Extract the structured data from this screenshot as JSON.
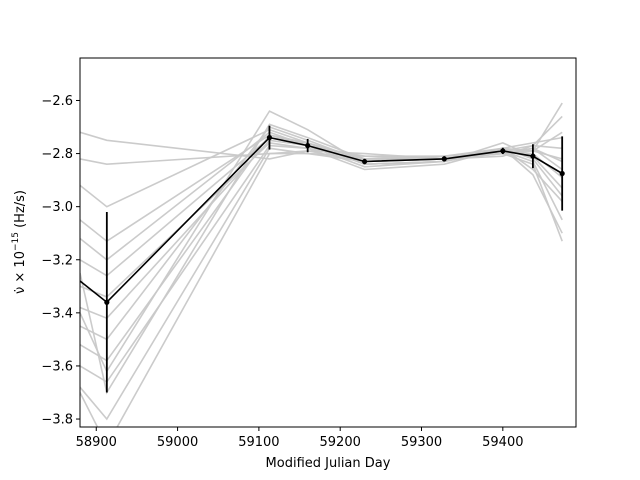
{
  "chart_data": {
    "type": "line",
    "title": "",
    "xlabel": "Modified Julian Day",
    "ylabel_parts": {
      "sym": "ν̇",
      "times": " × 10",
      "exp": "−15",
      "unit": " (Hz/s)"
    },
    "xlim": [
      58880,
      59490
    ],
    "ylim": [
      -3.83,
      -2.44
    ],
    "xticks": [
      58900,
      59000,
      59100,
      59200,
      59300,
      59400
    ],
    "xtick_labels": [
      "58900",
      "59000",
      "59100",
      "59200",
      "59300",
      "59400"
    ],
    "yticks": [
      -2.6,
      -2.8,
      -3.0,
      -3.2,
      -3.4,
      -3.6,
      -3.8
    ],
    "ytick_labels": [
      "−2.6",
      "−2.8",
      "−3.0",
      "−3.2",
      "−3.4",
      "−3.6",
      "−3.8"
    ],
    "grid": false,
    "colors": {
      "mean": "#000000",
      "samples": "#c8c8c8"
    },
    "mean_series": {
      "x": [
        58880,
        58913,
        59113,
        59160,
        59230,
        59328,
        59400,
        59437,
        59473
      ],
      "y": [
        -3.28,
        -3.36,
        -2.74,
        -2.77,
        -2.83,
        -2.82,
        -2.79,
        -2.81,
        -2.875
      ],
      "yerr": [
        null,
        0.34,
        0.045,
        0.025,
        0.01,
        0.01,
        0.012,
        0.045,
        0.14
      ]
    },
    "samples": [
      {
        "x": [
          58880,
          58913,
          59113,
          59160,
          59230,
          59328,
          59400,
          59437,
          59473
        ],
        "y": [
          -2.72,
          -2.75,
          -2.82,
          -2.79,
          -2.8,
          -2.82,
          -2.79,
          -2.77,
          -2.78
        ]
      },
      {
        "x": [
          58880,
          58913,
          59113,
          59160,
          59230,
          59328,
          59400,
          59437,
          59473
        ],
        "y": [
          -2.82,
          -2.84,
          -2.8,
          -2.8,
          -2.81,
          -2.81,
          -2.78,
          -2.79,
          -2.82
        ]
      },
      {
        "x": [
          58880,
          58913,
          59113,
          59160,
          59230,
          59328,
          59400,
          59437,
          59473
        ],
        "y": [
          -2.92,
          -3.0,
          -2.71,
          -2.76,
          -2.84,
          -2.83,
          -2.78,
          -2.86,
          -2.98
        ]
      },
      {
        "x": [
          58880,
          58913,
          59113,
          59160,
          59230,
          59328,
          59400,
          59437,
          59473
        ],
        "y": [
          -3.05,
          -3.13,
          -2.73,
          -2.76,
          -2.82,
          -2.81,
          -2.8,
          -2.78,
          -2.83
        ]
      },
      {
        "x": [
          58880,
          58913,
          59113,
          59160,
          59230,
          59328,
          59400,
          59437,
          59473
        ],
        "y": [
          -3.12,
          -3.2,
          -2.72,
          -2.77,
          -2.83,
          -2.82,
          -2.78,
          -2.76,
          -2.74
        ]
      },
      {
        "x": [
          58880,
          58913,
          59113,
          59160,
          59230,
          59328,
          59400,
          59437,
          59473
        ],
        "y": [
          -3.2,
          -3.26,
          -2.74,
          -2.76,
          -2.84,
          -2.83,
          -2.79,
          -2.8,
          -2.89
        ]
      },
      {
        "x": [
          58880,
          58913,
          59113,
          59160,
          59230,
          59328,
          59400,
          59437,
          59473
        ],
        "y": [
          -3.3,
          -3.34,
          -2.76,
          -2.78,
          -2.82,
          -2.82,
          -2.8,
          -2.78,
          -2.86
        ]
      },
      {
        "x": [
          58880,
          58913,
          59113,
          59160,
          59230,
          59328,
          59400,
          59437,
          59473
        ],
        "y": [
          -3.38,
          -3.42,
          -2.75,
          -2.77,
          -2.85,
          -2.83,
          -2.76,
          -2.81,
          -2.93
        ]
      },
      {
        "x": [
          58880,
          58913,
          59113,
          59160,
          59230,
          59328,
          59400,
          59437,
          59473
        ],
        "y": [
          -3.45,
          -3.5,
          -2.7,
          -2.75,
          -2.83,
          -2.81,
          -2.79,
          -2.83,
          -3.05
        ]
      },
      {
        "x": [
          58880,
          58913,
          59113,
          59160,
          59230,
          59328,
          59400,
          59437,
          59473
        ],
        "y": [
          -3.52,
          -3.58,
          -2.73,
          -2.77,
          -2.81,
          -2.82,
          -2.8,
          -2.79,
          -2.72
        ]
      },
      {
        "x": [
          58880,
          58913,
          59113,
          59160,
          59230,
          59328,
          59400,
          59437,
          59473
        ],
        "y": [
          -3.6,
          -3.66,
          -2.77,
          -2.78,
          -2.86,
          -2.84,
          -2.78,
          -2.88,
          -3.1
        ]
      },
      {
        "x": [
          58880,
          58913,
          59113,
          59160,
          59230,
          59328,
          59400,
          59437,
          59473
        ],
        "y": [
          -3.68,
          -3.8,
          -2.78,
          -2.8,
          -2.83,
          -2.82,
          -2.81,
          -2.77,
          -2.66
        ]
      },
      {
        "x": [
          58880,
          58913,
          59113,
          59160,
          59230,
          59328,
          59400,
          59437,
          59473
        ],
        "y": [
          -3.4,
          -3.62,
          -2.64,
          -2.71,
          -2.84,
          -2.83,
          -2.78,
          -2.82,
          -2.96
        ]
      },
      {
        "x": [
          58880,
          58913,
          59113,
          59160,
          59230,
          59328,
          59400,
          59437,
          59473
        ],
        "y": [
          -3.25,
          -3.7,
          -2.69,
          -2.74,
          -2.82,
          -2.82,
          -2.79,
          -2.79,
          -2.61
        ]
      },
      {
        "x": [
          58880,
          58913,
          59113,
          59160,
          59230,
          59328,
          59400,
          59437,
          59473
        ],
        "y": [
          -3.7,
          -3.9,
          -2.8,
          -2.79,
          -2.83,
          -2.82,
          -2.8,
          -2.84,
          -3.13
        ]
      }
    ]
  }
}
